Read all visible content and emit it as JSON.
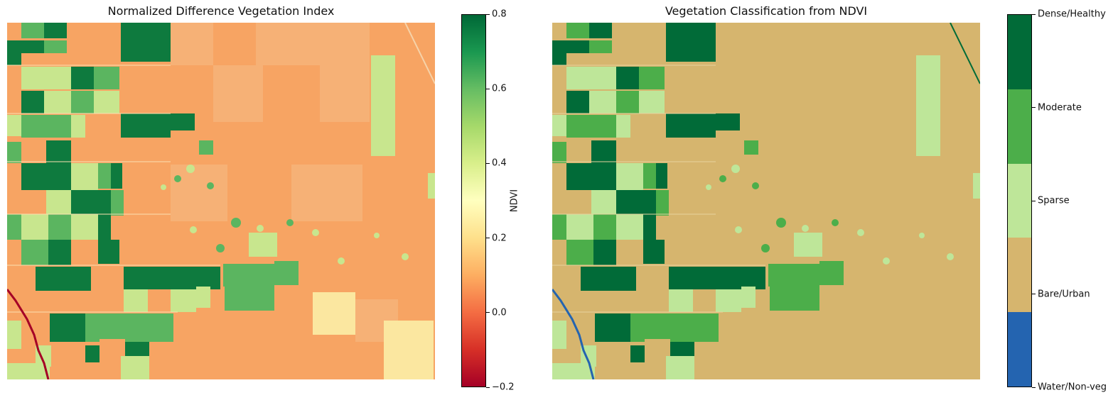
{
  "chart_data": [
    {
      "type": "heatmap",
      "title": "Normalized Difference Vegetation Index",
      "colorbar": {
        "label": "NDVI",
        "range": [
          -0.2,
          0.8
        ],
        "ticks": [
          "0.8",
          "0.6",
          "0.4",
          "0.2",
          "0.0",
          "−0.2"
        ],
        "colormap": "RdYlGn"
      },
      "background_color": "#f7a463"
    },
    {
      "type": "heatmap",
      "title": "Vegetation Classification from NDVI",
      "classes": [
        {
          "label": "Dense/Healthy",
          "color": "#016b38"
        },
        {
          "label": "Moderate",
          "color": "#4cae4a"
        },
        {
          "label": "Sparse",
          "color": "#bee699"
        },
        {
          "label": "Bare/Urban",
          "color": "#d6b56e"
        },
        {
          "label": "Water/Non-veg",
          "color": "#2464b0"
        }
      ],
      "background_color": "#d6b56e"
    }
  ]
}
